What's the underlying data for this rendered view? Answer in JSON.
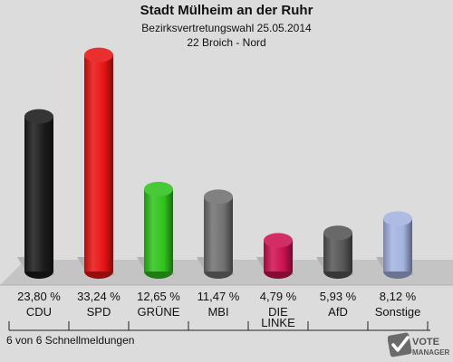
{
  "header": {
    "title": "Stadt Mülheim an der Ruhr",
    "subtitle": "Bezirksvertretungswahl 25.05.2014",
    "district": "22 Broich - Nord"
  },
  "chart_data": {
    "type": "bar",
    "categories": [
      "CDU",
      "SPD",
      "GRÜNE",
      "MBI",
      "DIE LINKE",
      "AfD",
      "Sonstige"
    ],
    "values": [
      23.8,
      33.24,
      12.65,
      11.47,
      4.79,
      5.93,
      8.12
    ],
    "value_labels": [
      "23,80 %",
      "33,24 %",
      "12,65 %",
      "11,47 %",
      "4,79 %",
      "5,93 %",
      "8,12 %"
    ],
    "colors": [
      "#1a1a1a",
      "#e81212",
      "#2fc21c",
      "#707070",
      "#cc1050",
      "#555555",
      "#a3b3e0"
    ],
    "title": "Stadt Mülheim an der Ruhr",
    "xlabel": "",
    "ylabel": "",
    "grid": false,
    "legend": "none"
  },
  "footer": {
    "status": "6 von 6 Schnellmeldungen"
  },
  "logo": {
    "line1": "VOTE",
    "line2": "MANAGER"
  }
}
